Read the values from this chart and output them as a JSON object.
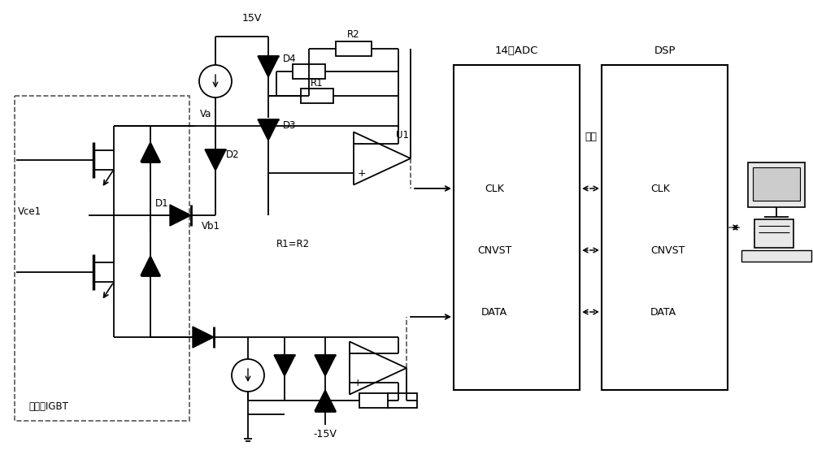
{
  "bg_color": "#ffffff",
  "line_color": "#000000",
  "fig_width": 10.0,
  "fig_height": 5.65,
  "labels": {
    "15V_top": "15V",
    "minus15V": "-15V",
    "Va": "Va",
    "Vb1": "Vb1",
    "Vce1": "Vce1",
    "D1": "D1",
    "D2": "D2",
    "D3": "D3",
    "D4": "D4",
    "R1_label": "R1",
    "R2_label": "R2",
    "U1": "U1",
    "R1eqR2": "R1=R2",
    "adc_title": "14位ADC",
    "dsp_title": "DSP",
    "optocoupler": "光耦",
    "CLK_left": "CLK",
    "CNVST_left": "CNVST",
    "DATA_left": "DATA",
    "CLK_right": "CLK",
    "CNVST_right": "CNVST",
    "DATA_right": "DATA",
    "igbt_label": "待监测IGBT"
  }
}
